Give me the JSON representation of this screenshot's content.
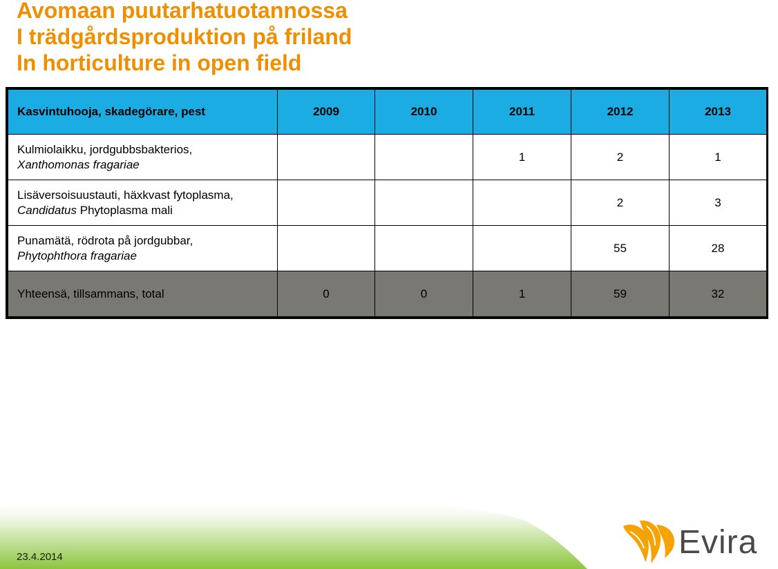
{
  "slide": {
    "title_lines": [
      "Avomaan puutarhatuotannossa",
      "I trädgårdsproduktion på friland",
      "In horticulture in open field"
    ],
    "date": "23.4.2014",
    "logo_text": "Evira"
  },
  "table": {
    "header": {
      "pest": "Kasvintuhooja, skadegörare, pest",
      "years": [
        "2009",
        "2010",
        "2011",
        "2012",
        "2013"
      ]
    },
    "rows": [
      {
        "name_line1": "Kulmiolaikku, jordgubbsbakterios,",
        "name_line2_italic": "Xanthomonas fragariae",
        "name_line2_plain": "",
        "values": [
          "",
          "",
          "1",
          "2",
          "1"
        ]
      },
      {
        "name_line1": "Lisäversoisuustauti, häxkvast fytoplasma,",
        "name_line2_italic": "Candidatus",
        "name_line2_plain": " Phytoplasma mali",
        "values": [
          "",
          "",
          "",
          "2",
          "3"
        ]
      },
      {
        "name_line1": "Punamätä, rödrota på jordgubbar,",
        "name_line2_italic": "Phytophthora fragariae",
        "name_line2_plain": "",
        "values": [
          "",
          "",
          "",
          "55",
          "28"
        ]
      }
    ],
    "total": {
      "label": "Yhteensä, tillsammans, total",
      "values": [
        "0",
        "0",
        "1",
        "59",
        "32"
      ]
    }
  },
  "colors": {
    "title": "#ef8f00",
    "header_bg": "#1aace3",
    "total_bg": "#7a7872",
    "footer_green": "#8cc63f",
    "logo_orange": "#f5a300"
  },
  "icons": {
    "logo_mark": "evira-logo-icon"
  }
}
